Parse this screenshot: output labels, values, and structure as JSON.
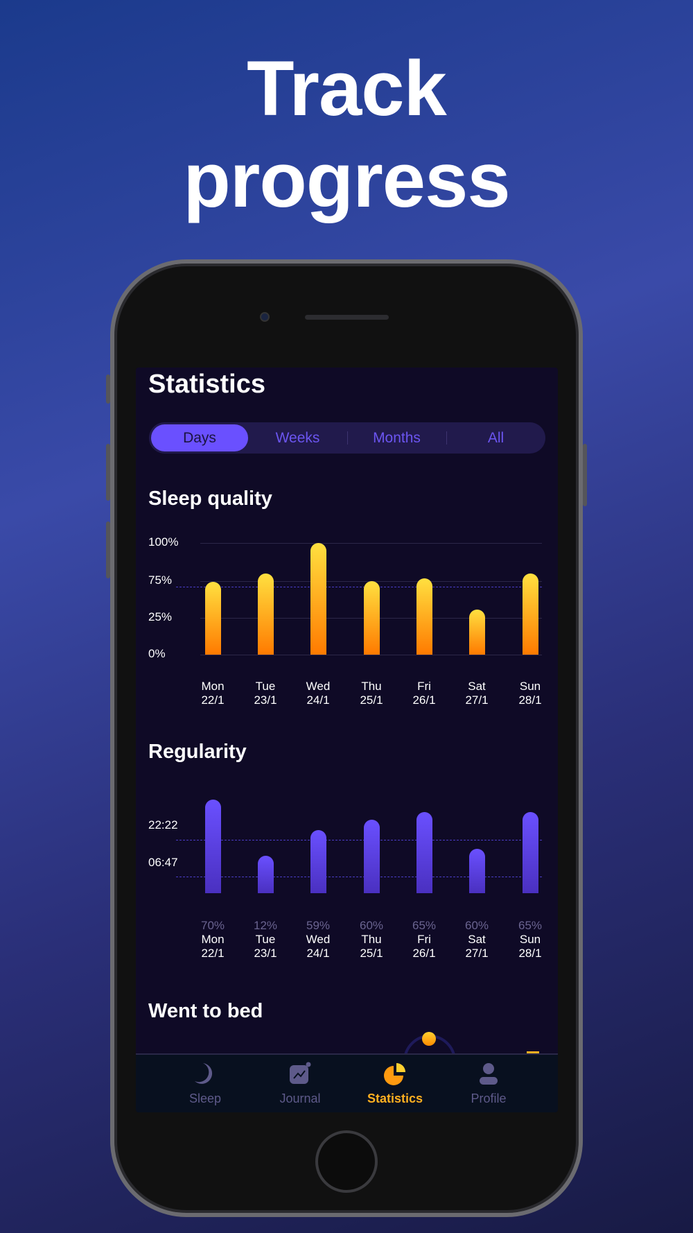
{
  "headline": {
    "line1": "Track",
    "line2": "progress"
  },
  "screen": {
    "title": "Statistics",
    "segments": [
      {
        "label": "Days",
        "active": true
      },
      {
        "label": "Weeks"
      },
      {
        "label": "Months"
      },
      {
        "label": "All"
      }
    ],
    "sleep_quality": {
      "title": "Sleep quality"
    },
    "regularity": {
      "title": "Regularity"
    },
    "went_to_bed": {
      "title": "Went to bed"
    }
  },
  "chart_data": [
    {
      "type": "bar",
      "title": "Sleep quality",
      "yticks": [
        "100%",
        "75%",
        "25%",
        "0%"
      ],
      "ytick_values": [
        100,
        75,
        25,
        0
      ],
      "categories": [
        {
          "day": "Mon",
          "date": "22/1"
        },
        {
          "day": "Tue",
          "date": "23/1"
        },
        {
          "day": "Wed",
          "date": "24/1"
        },
        {
          "day": "Thu",
          "date": "25/1"
        },
        {
          "day": "Fri",
          "date": "26/1"
        },
        {
          "day": "Sat",
          "date": "27/1"
        },
        {
          "day": "Sun",
          "date": "28/1"
        }
      ],
      "values": [
        74,
        80,
        100,
        75,
        77,
        36,
        80
      ],
      "average_line": 67,
      "color_top": "#ffe040",
      "color_bottom": "#ff7a00"
    },
    {
      "type": "bar",
      "title": "Regularity",
      "yticks": [
        "22:22",
        "06:47"
      ],
      "categories": [
        {
          "day": "Mon",
          "date": "22/1",
          "pct": "70%"
        },
        {
          "day": "Tue",
          "date": "23/1",
          "pct": "12%"
        },
        {
          "day": "Wed",
          "date": "24/1",
          "pct": "59%"
        },
        {
          "day": "Thu",
          "date": "25/1",
          "pct": "60%"
        },
        {
          "day": "Fri",
          "date": "26/1",
          "pct": "65%"
        },
        {
          "day": "Sat",
          "date": "27/1",
          "pct": "60%"
        },
        {
          "day": "Sun",
          "date": "28/1",
          "pct": "65%"
        }
      ],
      "levels": [
        0.9,
        0.36,
        0.61,
        0.71,
        0.78,
        0.43,
        0.78
      ],
      "color": "#6a50ff"
    }
  ],
  "tabs": [
    {
      "label": "Sleep",
      "icon": "moon-icon"
    },
    {
      "label": "Journal",
      "icon": "journal-chart-icon"
    },
    {
      "label": "Statistics",
      "icon": "pie-chart-icon",
      "active": true
    },
    {
      "label": "Profile",
      "icon": "person-icon"
    }
  ],
  "colors": {
    "accent": "#6a50ff",
    "active_tab": "#ffb020",
    "screen_bg": "#0f0a26"
  }
}
